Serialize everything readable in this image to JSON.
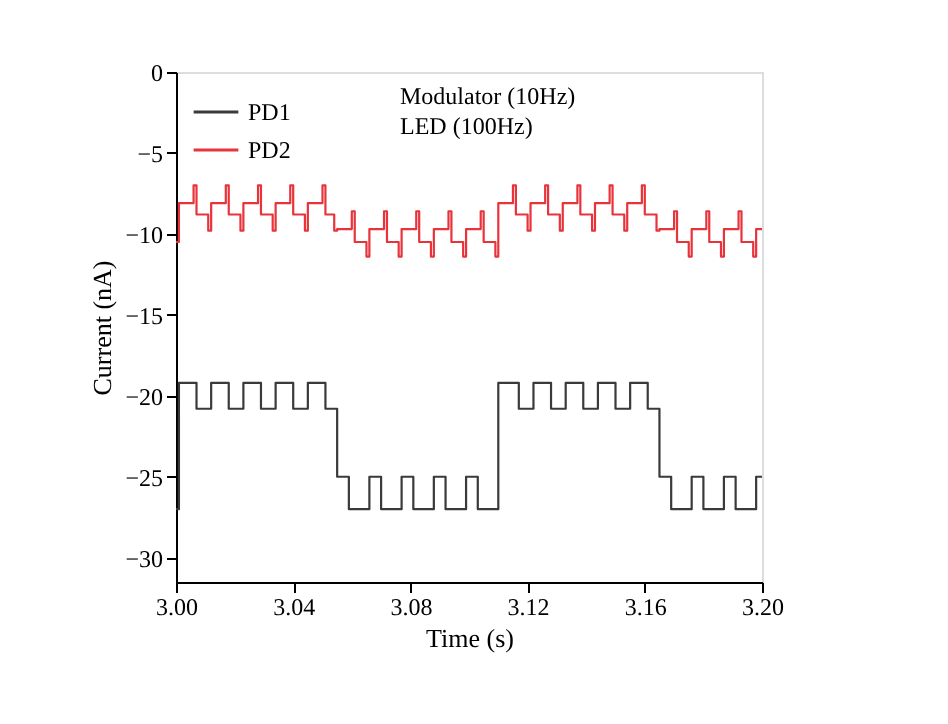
{
  "chart_data": {
    "type": "step",
    "xlabel": "Time (s)",
    "ylabel": "Current (nA)",
    "xlim": [
      3.0,
      3.2
    ],
    "xticks": [
      {
        "value": 3.0,
        "label": "3.00"
      },
      3.04,
      3.08,
      3.12,
      3.16,
      {
        "value": 3.2,
        "label": "3.20"
      }
    ],
    "ylim": [
      -31.5,
      0
    ],
    "yticks": [
      0,
      -5,
      -10,
      -15,
      -20,
      -25,
      -30
    ],
    "grid": false,
    "legend": "top left",
    "annotations": [
      "Modulator (10Hz)",
      "LED (100Hz)"
    ],
    "series": [
      {
        "name": "PD1",
        "color": "#3a3a3a",
        "x": [
          3.0,
          3.001,
          3.007,
          3.012,
          3.018,
          3.023,
          3.029,
          3.034,
          3.04,
          3.045,
          3.051,
          3.055,
          3.059,
          3.066,
          3.07,
          3.077,
          3.081,
          3.088,
          3.092,
          3.099,
          3.103,
          3.11,
          3.117,
          3.122,
          3.128,
          3.133,
          3.139,
          3.144,
          3.15,
          3.155,
          3.161,
          3.165,
          3.169,
          3.176,
          3.18,
          3.187,
          3.191,
          3.198,
          3.2
        ],
        "values": [
          -27,
          -19.2,
          -20.8,
          -19.2,
          -20.8,
          -19.2,
          -20.8,
          -19.2,
          -20.8,
          -19.2,
          -20.8,
          -25,
          -27,
          -25,
          -27,
          -25,
          -27,
          -25,
          -27,
          -25,
          -27,
          -19.2,
          -20.8,
          -19.2,
          -20.8,
          -19.2,
          -20.8,
          -19.2,
          -20.8,
          -19.2,
          -20.8,
          -25,
          -27,
          -25,
          -27,
          -25,
          -27,
          -25,
          -25
        ]
      },
      {
        "name": "PD2",
        "color": "#e8333b",
        "x": [
          3.0,
          3.001,
          3.006,
          3.007,
          3.011,
          3.012,
          3.017,
          3.018,
          3.022,
          3.023,
          3.028,
          3.029,
          3.033,
          3.034,
          3.039,
          3.04,
          3.044,
          3.045,
          3.05,
          3.051,
          3.054,
          3.055,
          3.06,
          3.061,
          3.065,
          3.066,
          3.071,
          3.072,
          3.076,
          3.077,
          3.082,
          3.083,
          3.087,
          3.088,
          3.093,
          3.094,
          3.098,
          3.099,
          3.104,
          3.105,
          3.109,
          3.11,
          3.115,
          3.116,
          3.12,
          3.121,
          3.126,
          3.127,
          3.131,
          3.132,
          3.137,
          3.138,
          3.142,
          3.143,
          3.148,
          3.149,
          3.153,
          3.154,
          3.159,
          3.16,
          3.164,
          3.165,
          3.17,
          3.171,
          3.175,
          3.176,
          3.181,
          3.182,
          3.186,
          3.187,
          3.192,
          3.193,
          3.197,
          3.198,
          3.2
        ],
        "values": [
          -10.5,
          -8.1,
          -7.0,
          -8.8,
          -9.8,
          -8.1,
          -7.0,
          -8.8,
          -9.8,
          -8.1,
          -7.0,
          -8.8,
          -9.8,
          -8.1,
          -7.0,
          -8.8,
          -9.8,
          -8.1,
          -7.0,
          -8.8,
          -9.8,
          -9.7,
          -8.6,
          -10.5,
          -11.4,
          -9.7,
          -8.6,
          -10.5,
          -11.4,
          -9.7,
          -8.6,
          -10.5,
          -11.4,
          -9.7,
          -8.6,
          -10.5,
          -11.4,
          -9.7,
          -8.6,
          -10.5,
          -11.4,
          -8.1,
          -7.0,
          -8.8,
          -9.8,
          -8.1,
          -7.0,
          -8.8,
          -9.8,
          -8.1,
          -7.0,
          -8.8,
          -9.8,
          -8.1,
          -7.0,
          -8.8,
          -9.8,
          -8.1,
          -7.0,
          -8.8,
          -9.8,
          -9.7,
          -8.6,
          -10.5,
          -11.4,
          -9.7,
          -8.6,
          -10.5,
          -11.4,
          -9.7,
          -8.6,
          -10.5,
          -11.4,
          -9.7,
          -9.7
        ]
      }
    ]
  }
}
